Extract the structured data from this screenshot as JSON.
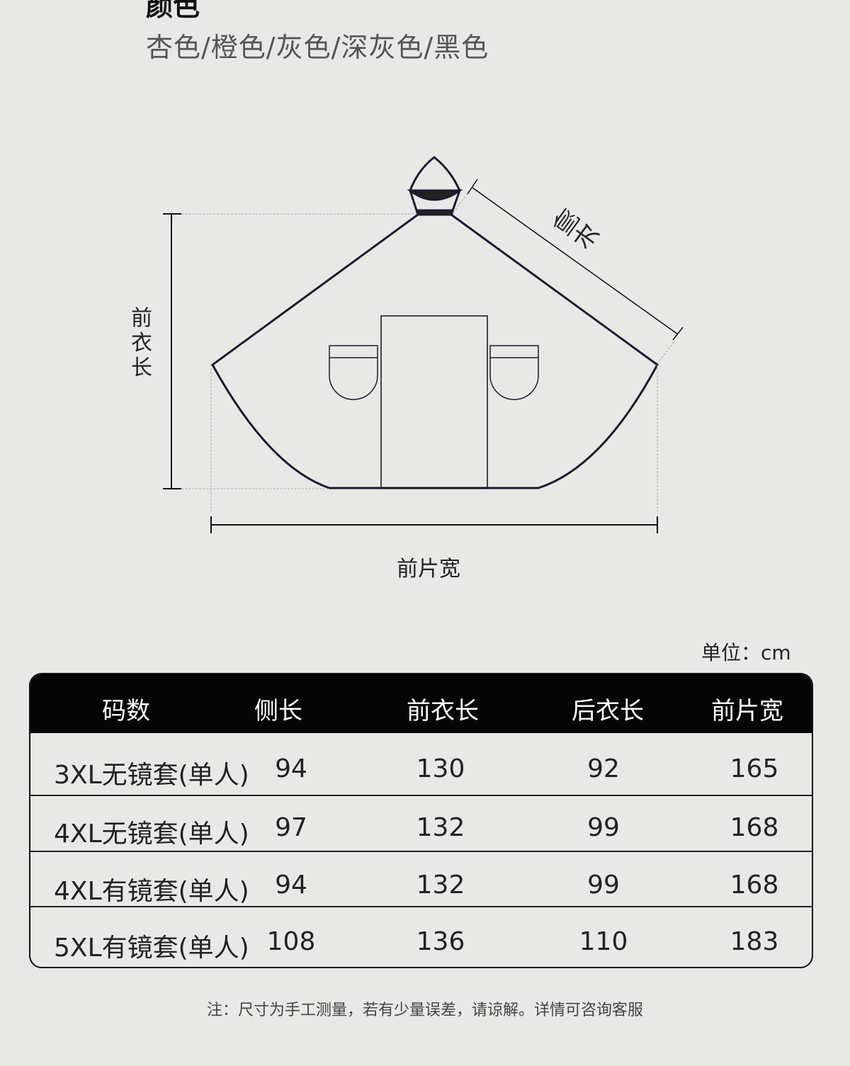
{
  "heading": "颜色",
  "colors_line": "杏色/橙色/灰色/深灰色/黑色",
  "diagram": {
    "side_length_label": "侧长",
    "front_length_label": "前衣长",
    "front_width_label": "前片宽",
    "outline_color": "#1a1c2e"
  },
  "unit": "单位：cm",
  "table": {
    "headers": [
      "码数",
      "侧长",
      "前衣长",
      "后衣长",
      "前片宽"
    ],
    "rows": [
      [
        "3XL无镜套(单人)",
        "94",
        "130",
        "92",
        "165"
      ],
      [
        "4XL无镜套(单人)",
        "97",
        "132",
        "99",
        "168"
      ],
      [
        "4XL有镜套(单人)",
        "94",
        "132",
        "99",
        "168"
      ],
      [
        "5XL有镜套(单人)",
        "108",
        "136",
        "110",
        "183"
      ]
    ]
  },
  "note": "注：尺寸为手工测量，若有少量误差，请谅解。详情可咨询客服"
}
